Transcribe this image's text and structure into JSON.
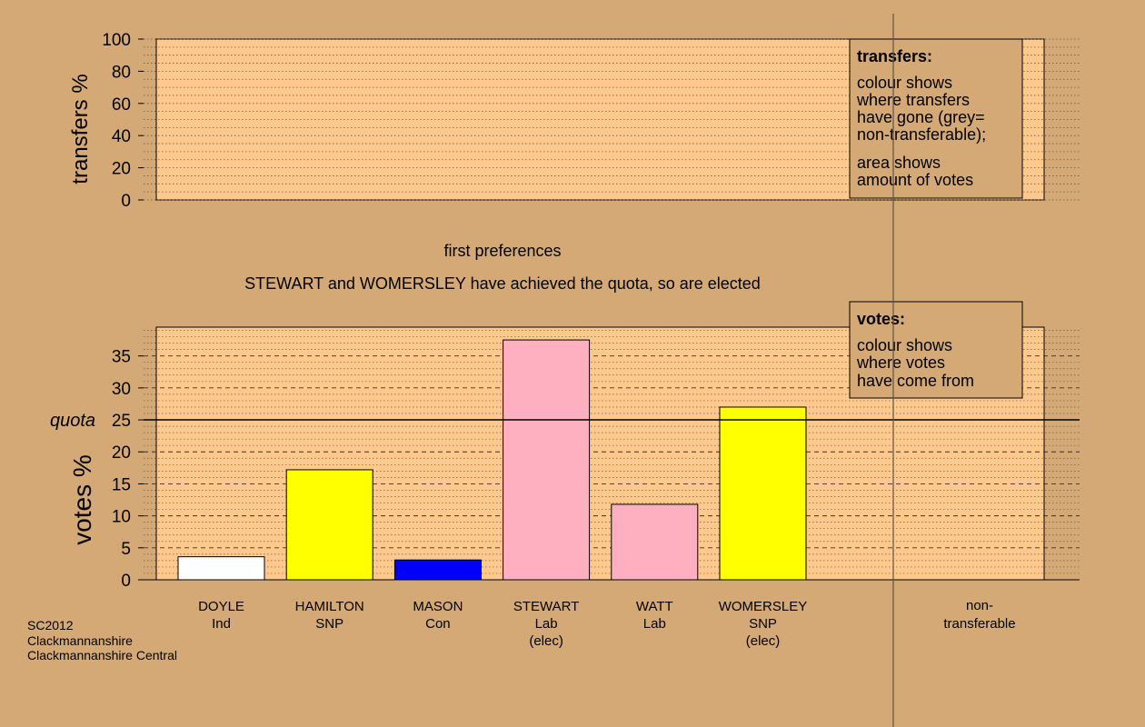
{
  "colors": {
    "background": "#d4a976",
    "plot_bg": "#ffc98e",
    "independent": "#ffffff",
    "snp": "#ffff00",
    "conservative": "#0000ff",
    "labour": "#ffb0c0"
  },
  "transfers_panel": {
    "ylabel": "transfers %",
    "ticks": [
      "0",
      "20",
      "40",
      "60",
      "80",
      "100"
    ],
    "legend": {
      "title": "transfers:",
      "lines1": [
        "colour shows",
        "where transfers",
        "have gone (grey=",
        "non-transferable);"
      ],
      "lines2": [
        "area shows",
        "amount of votes"
      ]
    }
  },
  "stage_label": "first preferences",
  "status_message": "STEWART and WOMERSLEY have achieved the quota, so are elected",
  "votes_legend": {
    "title": "votes:",
    "lines": [
      "colour shows",
      "where votes",
      "have come from"
    ]
  },
  "quota_label": "quota",
  "footer": [
    "SC2012",
    "Clackmannanshire",
    "Clackmannanshire Central"
  ],
  "nontransferable_label": [
    "non-",
    "transferable"
  ],
  "chart_data": {
    "type": "bar",
    "ylabel": "votes %",
    "ylim": [
      0,
      39.5
    ],
    "yticks": [
      "0",
      "5",
      "10",
      "15",
      "20",
      "25",
      "30",
      "35"
    ],
    "quota": 25,
    "grid": true,
    "categories": [
      {
        "name": "DOYLE",
        "party": "Ind",
        "note": "",
        "color": "#ffffff"
      },
      {
        "name": "HAMILTON",
        "party": "SNP",
        "note": "",
        "color": "#ffff00"
      },
      {
        "name": "MASON",
        "party": "Con",
        "note": "",
        "color": "#0000ff"
      },
      {
        "name": "STEWART",
        "party": "Lab",
        "note": "(elec)",
        "color": "#ffb0c0"
      },
      {
        "name": "WATT",
        "party": "Lab",
        "note": "",
        "color": "#ffb0c0"
      },
      {
        "name": "WOMERSLEY",
        "party": "SNP",
        "note": "(elec)",
        "color": "#ffff00"
      }
    ],
    "values": [
      3.6,
      17.2,
      3.1,
      37.5,
      11.8,
      27.0
    ]
  }
}
